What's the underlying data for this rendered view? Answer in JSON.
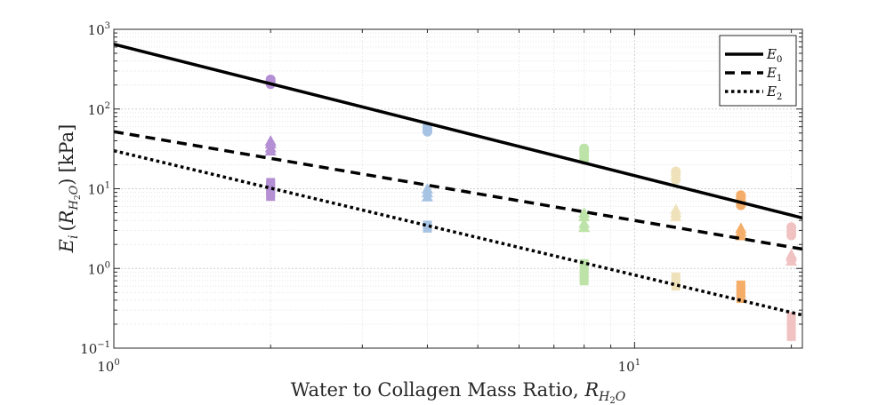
{
  "chart_data": {
    "type": "scatter",
    "title": "",
    "x_scale": "log",
    "y_scale": "log",
    "xlim": [
      1,
      21
    ],
    "ylim": [
      0.1,
      1000
    ],
    "grid": true,
    "legend_position": "top-right",
    "xlabel": {
      "text": "Water to Collagen Mass Ratio, ",
      "symbol": "R",
      "subscript_main": "H",
      "subscript_index": "2",
      "subscript_tail": "O"
    },
    "ylabel": {
      "symbol": "E",
      "index": "i",
      "open_paren": "(",
      "arg_symbol": "R",
      "arg_sub_main": "H",
      "arg_sub_index": "2",
      "arg_sub_tail": "O",
      "close_paren": ")",
      "units": "[kPa]"
    },
    "x_ticks": [
      {
        "value": 1,
        "base": "10",
        "exp": "0"
      },
      {
        "value": 10,
        "base": "10",
        "exp": "1"
      }
    ],
    "y_ticks": [
      {
        "value": 0.1,
        "base": "10",
        "exp": "−1"
      },
      {
        "value": 1,
        "base": "10",
        "exp": "0"
      },
      {
        "value": 10,
        "base": "10",
        "exp": "1"
      },
      {
        "value": 100,
        "base": "10",
        "exp": "2"
      },
      {
        "value": 1000,
        "base": "10",
        "exp": "3"
      }
    ],
    "fit_lines": [
      {
        "name": "E",
        "subscript": "0",
        "style": "solid",
        "points": [
          [
            1,
            650
          ],
          [
            21,
            4.3
          ]
        ]
      },
      {
        "name": "E",
        "subscript": "1",
        "style": "dashed",
        "points": [
          [
            1,
            52
          ],
          [
            21,
            1.75
          ]
        ]
      },
      {
        "name": "E",
        "subscript": "2",
        "style": "dotted",
        "points": [
          [
            1,
            30
          ],
          [
            21,
            0.26
          ]
        ]
      }
    ],
    "groups": [
      {
        "x": 2,
        "color": "#b48fd4",
        "E0": [
          205,
          215,
          225,
          235
        ],
        "E1": [
          30,
          33,
          37,
          40
        ],
        "E2": [
          8,
          9,
          10,
          11,
          12
        ]
      },
      {
        "x": 4,
        "color": "#a7c3e3",
        "E0": [
          52,
          56,
          60
        ],
        "E1": [
          8,
          9,
          10
        ],
        "E2": [
          3.2,
          3.5
        ]
      },
      {
        "x": 8,
        "color": "#bde3a8",
        "E0": [
          23,
          26,
          29,
          32
        ],
        "E1": [
          3.3,
          3.7,
          4.5,
          5.0
        ],
        "E2": [
          0.7,
          0.8,
          0.9,
          1.05,
          1.15
        ]
      },
      {
        "x": 12,
        "color": "#efe2bb",
        "E0": [
          13,
          15,
          16.5
        ],
        "E1": [
          4.5,
          5.0,
          5.5
        ],
        "E2": [
          0.6,
          0.65,
          0.72,
          0.78
        ]
      },
      {
        "x": 16,
        "color": "#f4ae6a",
        "E0": [
          6.2,
          7.0,
          7.7,
          8.3
        ],
        "E1": [
          2.6,
          2.9,
          3.2
        ],
        "E2": [
          0.42,
          0.48,
          0.55,
          0.62
        ]
      },
      {
        "x": 20,
        "color": "#f1c2c2",
        "E0": [
          2.6,
          2.9,
          3.3
        ],
        "E1": [
          1.25,
          1.4,
          1.5
        ],
        "E2": [
          0.14,
          0.17,
          0.21,
          0.25
        ]
      }
    ]
  }
}
